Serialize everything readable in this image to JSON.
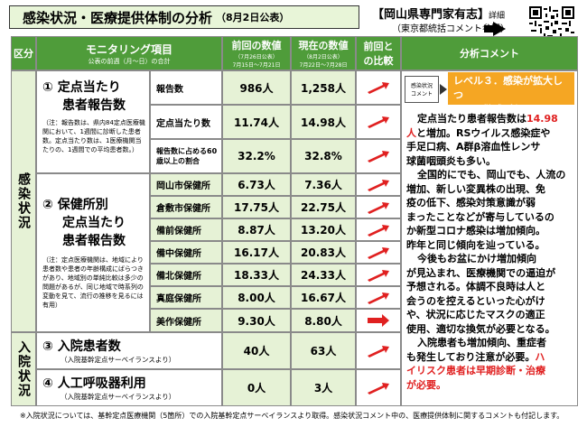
{
  "header": {
    "title": "感染状況・医療提供体制の分析",
    "date": "（8月2日公表）",
    "org": "【岡山県専門家有志】",
    "org_sub": "（東京都統括コメント参照）",
    "detail": "詳細"
  },
  "table_header": {
    "kubun": "区分",
    "monitoring": "モニタリング項目",
    "monitoring_sub": "公表の前週（月～日）の合計",
    "prev": "前回の数値",
    "prev_sub1": "（7月26日公表）",
    "prev_sub2": "7月15日～7月21日",
    "curr": "現在の数値",
    "curr_sub1": "（8月2日公表）",
    "curr_sub2": "7月22日～7月28日",
    "compare": "前回との比較",
    "analysis": "分析コメント"
  },
  "side": {
    "infection": "感染状況",
    "hospital": "入院状況"
  },
  "sec1": {
    "title_a": "① 定点当たり",
    "title_b": "患者報告数",
    "note": "（注：報告数は、県内84定点医療機関において、1週間に診断した患者数。定点当たり数は、1医療機関当たりの、1週間での平均患者数。）",
    "rows": [
      {
        "label": "報告数",
        "prev": "986人",
        "curr": "1,258人"
      },
      {
        "label": "定点当たり数",
        "prev": "11.74人",
        "curr": "14.98人"
      },
      {
        "label": "報告数に占める60歳以上の割合",
        "prev": "32.2%",
        "curr": "32.8%"
      }
    ]
  },
  "sec2": {
    "title_a": "② 保健所別",
    "title_b": "定点当たり",
    "title_c": "患者報告数",
    "note": "（注：定点医療機関は、地域により患者数や患者の年齢構成にばらつきがあり、地域別の単純比較は多少の問題があるが、同じ地域で時系列の変動を見て、流行の推移を見るには有用）",
    "rows": [
      {
        "label": "岡山市保健所",
        "prev": "6.73人",
        "curr": "7.36人"
      },
      {
        "label": "倉敷市保健所",
        "prev": "17.75人",
        "curr": "22.75人"
      },
      {
        "label": "備前保健所",
        "prev": "8.87人",
        "curr": "13.20人"
      },
      {
        "label": "備中保健所",
        "prev": "16.17人",
        "curr": "20.83人"
      },
      {
        "label": "備北保健所",
        "prev": "18.33人",
        "curr": "24.33人"
      },
      {
        "label": "真庭保健所",
        "prev": "8.00人",
        "curr": "16.67人"
      },
      {
        "label": "美作保健所",
        "prev": "9.30人",
        "curr": "8.80人"
      }
    ]
  },
  "sec3": {
    "title": "③ 入院患者数",
    "note": "（入院基幹定点サーベイランスより）",
    "prev": "40人",
    "curr": "63人"
  },
  "sec4": {
    "title": "④ 人工呼吸器利用",
    "note": "（入院基幹定点サーベイランスより）",
    "prev": "0人",
    "curr": "3人"
  },
  "level": {
    "tag1": "感染状況",
    "tag2": "コメント",
    "text1": "レベル３．感染が拡大しつ",
    "text2": "つあり警戒が必要"
  },
  "comment": {
    "l1a": "定点当たり患者報告数は",
    "l1b": "14.98",
    "l2a": "人",
    "l2b": "と増加。RSウイルス感染症や",
    "l3": "手足口病、A群β溶血性レンサ",
    "l4": "球菌咽頭炎も多い。",
    "l5": "全国的にでも、岡山でも、人流の",
    "l6": "増加、新しい変異株の出現、免",
    "l7": "疫の低下、感染対策意識が弱",
    "l8": "まったことなどが寄与しているの",
    "l9": "か新型コロナ感染は増加傾向。",
    "l10": "昨年と同じ傾向を辿っている。",
    "l11": "今後もお盆にかけ増加傾向",
    "l12": "が見込まれ、医療機関での逼迫が",
    "l13": "予想される。体調不良時は人と",
    "l14": "会うのを控えるといった心がけ",
    "l15": "や、状況に応じたマスクの適正",
    "l16": "使用、適切な換気が必要となる。",
    "l17": "入院患者も増加傾向、重症者",
    "l18": "も発生しており注意が必要。",
    "l18b": "ハ",
    "l19": "イリスク患者は早期診断・治療",
    "l20": "が必要。"
  },
  "footer": "※入院状況については、基幹定点医療機関（5箇所）での入院基幹定点サーベイランスより取得。感染状況コメント中の、医療提供体制に関するコメントも付記します。",
  "colors": {
    "green_header": "#4f9c3a",
    "light_green": "#e6f2d6",
    "arrow_red": "#e02020",
    "level_orange": "#f5a623"
  }
}
